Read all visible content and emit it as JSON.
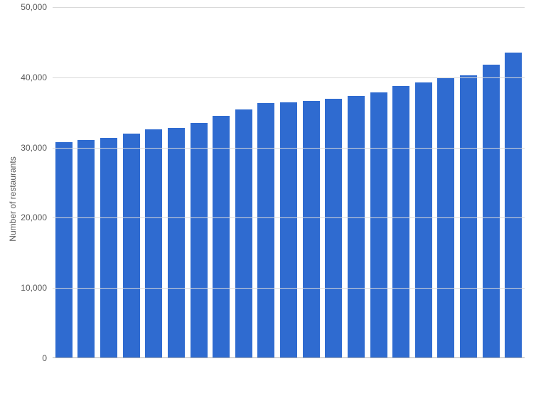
{
  "chart": {
    "type": "bar",
    "y_axis_title": "Number of restaurants",
    "y_axis_title_fontsize": 12,
    "y_axis_title_color": "#595959",
    "tick_fontsize": 12,
    "tick_color": "#595959",
    "background_color": "#ffffff",
    "gridline_color": "#d9d9d9",
    "baseline_color": "#b0b0b0",
    "bar_color": "#2f6bd0",
    "bar_width_ratio": 0.76,
    "ylim": [
      0,
      50000
    ],
    "ytick_step": 10000,
    "ytick_labels": [
      "0",
      "10,000",
      "20,000",
      "30,000",
      "40,000",
      "50,000"
    ],
    "values": [
      30800,
      31100,
      31400,
      32000,
      32600,
      32800,
      33500,
      34500,
      35400,
      36300,
      36400,
      36600,
      36900,
      37400,
      37900,
      38800,
      39300,
      40000,
      40300,
      41800,
      43500
    ]
  }
}
